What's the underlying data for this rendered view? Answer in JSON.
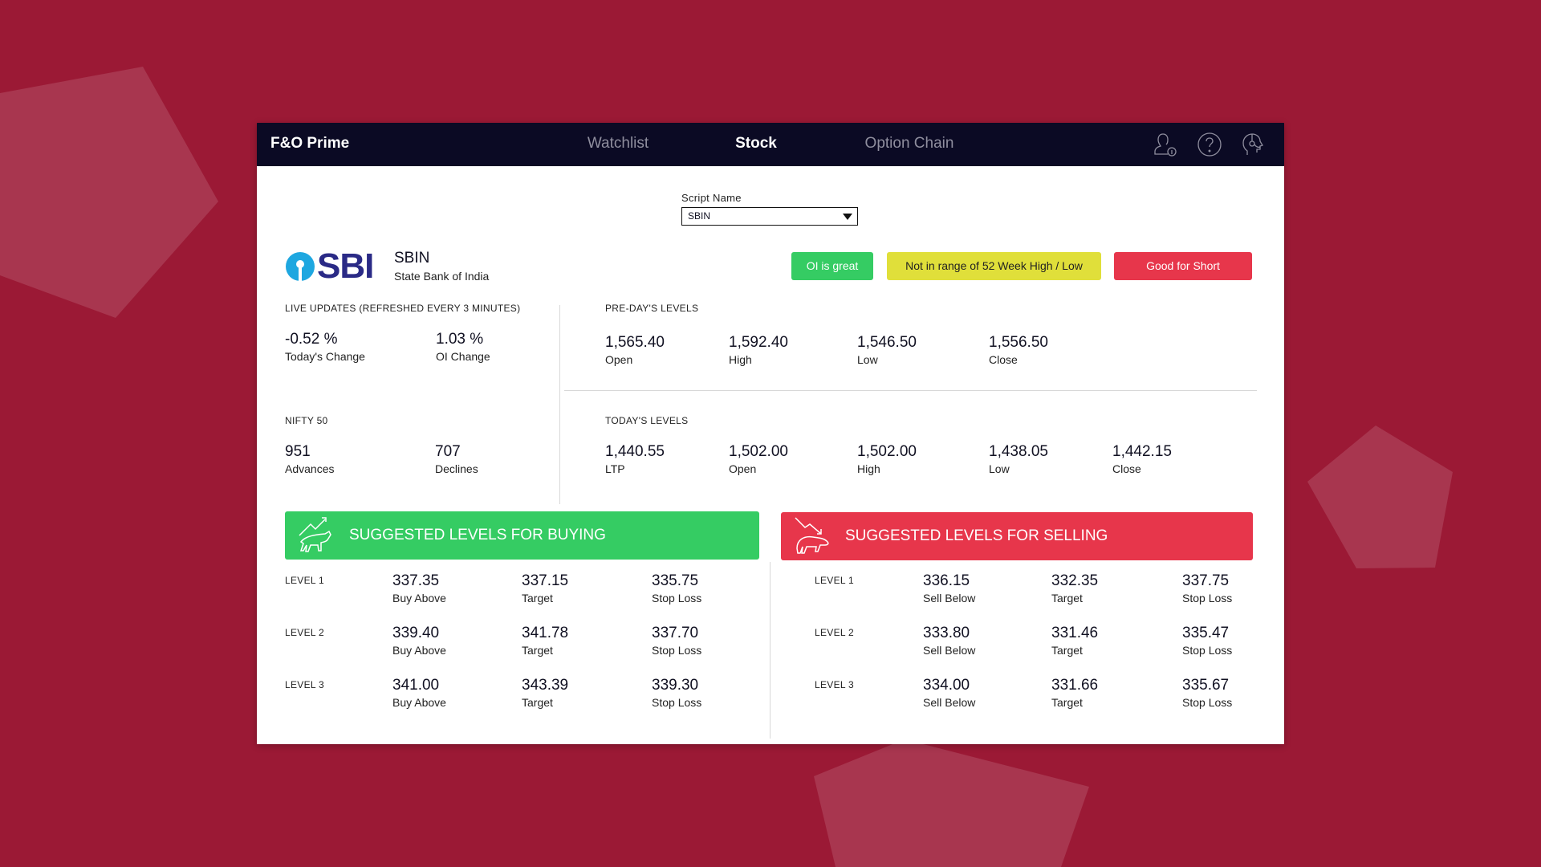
{
  "app": {
    "title": "F&O Prime"
  },
  "nav": {
    "items": [
      {
        "label": "Watchlist"
      },
      {
        "label": "Stock"
      },
      {
        "label": "Option Chain"
      }
    ],
    "active": "Stock"
  },
  "icons": {
    "profile": "user-info-icon",
    "help": "help-icon",
    "support": "headset-support-icon"
  },
  "script": {
    "label": "Script Name",
    "value": "SBIN"
  },
  "stock": {
    "logo_text": "SBI",
    "symbol": "SBIN",
    "name": "State Bank of India"
  },
  "badges": [
    {
      "label": "OI is great",
      "color": "#35cc63"
    },
    {
      "label": "Not in range of 52 Week High / Low",
      "color": "#e0df3a"
    },
    {
      "label": "Good for Short",
      "color": "#e7364b"
    }
  ],
  "live": {
    "heading": "LIVE UPDATES (REFRESHED EVERY 3 MINUTES)",
    "items": [
      {
        "value": "-0.52 %",
        "label": "Today's Change"
      },
      {
        "value": "1.03 %",
        "label": "OI Change"
      }
    ]
  },
  "nifty": {
    "heading": "NIFTY 50",
    "items": [
      {
        "value": "951",
        "label": "Advances"
      },
      {
        "value": "707",
        "label": "Declines"
      }
    ]
  },
  "preday": {
    "heading": "PRE-DAY'S LEVELS",
    "items": [
      {
        "value": "1,565.40",
        "label": "Open"
      },
      {
        "value": "1,592.40",
        "label": "High"
      },
      {
        "value": "1,546.50",
        "label": "Low"
      },
      {
        "value": "1,556.50",
        "label": "Close"
      }
    ]
  },
  "today": {
    "heading": "TODAY'S LEVELS",
    "items": [
      {
        "value": "1,440.55",
        "label": "LTP"
      },
      {
        "value": "1,502.00",
        "label": "Open"
      },
      {
        "value": "1,502.00",
        "label": "High"
      },
      {
        "value": "1,438.05",
        "label": "Low"
      },
      {
        "value": "1,442.15",
        "label": "Close"
      }
    ]
  },
  "buying": {
    "title": "SUGGESTED LEVELS FOR BUYING",
    "color": "#35cc63",
    "rows": [
      {
        "level": "LEVEL 1",
        "cells": [
          {
            "value": "337.35",
            "label": "Buy Above"
          },
          {
            "value": "337.15",
            "label": "Target"
          },
          {
            "value": "335.75",
            "label": "Stop Loss"
          }
        ]
      },
      {
        "level": "LEVEL 2",
        "cells": [
          {
            "value": "339.40",
            "label": "Buy Above"
          },
          {
            "value": "341.78",
            "label": "Target"
          },
          {
            "value": "337.70",
            "label": "Stop Loss"
          }
        ]
      },
      {
        "level": "LEVEL 3",
        "cells": [
          {
            "value": "341.00",
            "label": "Buy Above"
          },
          {
            "value": "343.39",
            "label": "Target"
          },
          {
            "value": "339.30",
            "label": "Stop Loss"
          }
        ]
      }
    ]
  },
  "selling": {
    "title": "SUGGESTED LEVELS FOR SELLING",
    "color": "#e7364b",
    "rows": [
      {
        "level": "LEVEL 1",
        "cells": [
          {
            "value": "336.15",
            "label": "Sell Below"
          },
          {
            "value": "332.35",
            "label": "Target"
          },
          {
            "value": "337.75",
            "label": "Stop Loss"
          }
        ]
      },
      {
        "level": "LEVEL 2",
        "cells": [
          {
            "value": "333.80",
            "label": "Sell Below"
          },
          {
            "value": "331.46",
            "label": "Target"
          },
          {
            "value": "335.47",
            "label": "Stop Loss"
          }
        ]
      },
      {
        "level": "LEVEL 3",
        "cells": [
          {
            "value": "334.00",
            "label": "Sell Below"
          },
          {
            "value": "331.66",
            "label": "Target"
          },
          {
            "value": "335.67",
            "label": "Stop Loss"
          }
        ]
      }
    ]
  }
}
